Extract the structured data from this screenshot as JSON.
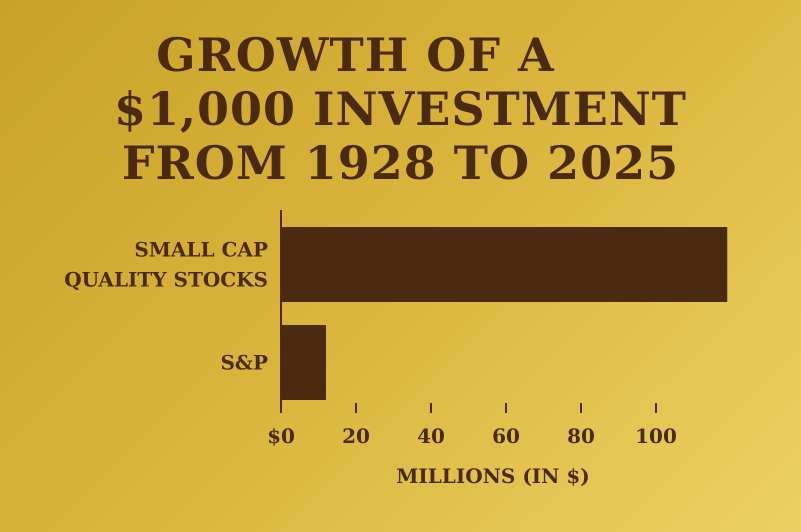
{
  "title_lines": [
    "GROWTH OF A",
    "$1,000 INVESTMENT",
    "FROM 1928 TO 2025"
  ],
  "chart_data": {
    "type": "bar",
    "orientation": "horizontal",
    "title": "GROWTH OF A $1,000 INVESTMENT FROM 1928 TO 2025",
    "categories": [
      "SMALL CAP QUALITY STOCKS",
      "S&P"
    ],
    "category_lines": [
      [
        "SMALL CAP",
        "QUALITY STOCKS"
      ],
      [
        "S&P"
      ]
    ],
    "values": [
      119,
      12
    ],
    "xlabel": "MILLIONS (IN $)",
    "ylabel": "",
    "xlim": [
      0,
      120
    ],
    "ticks": [
      0,
      20,
      40,
      60,
      80,
      100
    ],
    "tick_labels": [
      "$0",
      "20",
      "40",
      "60",
      "80",
      "100"
    ],
    "grid": false,
    "bar_color": "#4a2a10",
    "text_color": "#4a2a10"
  }
}
